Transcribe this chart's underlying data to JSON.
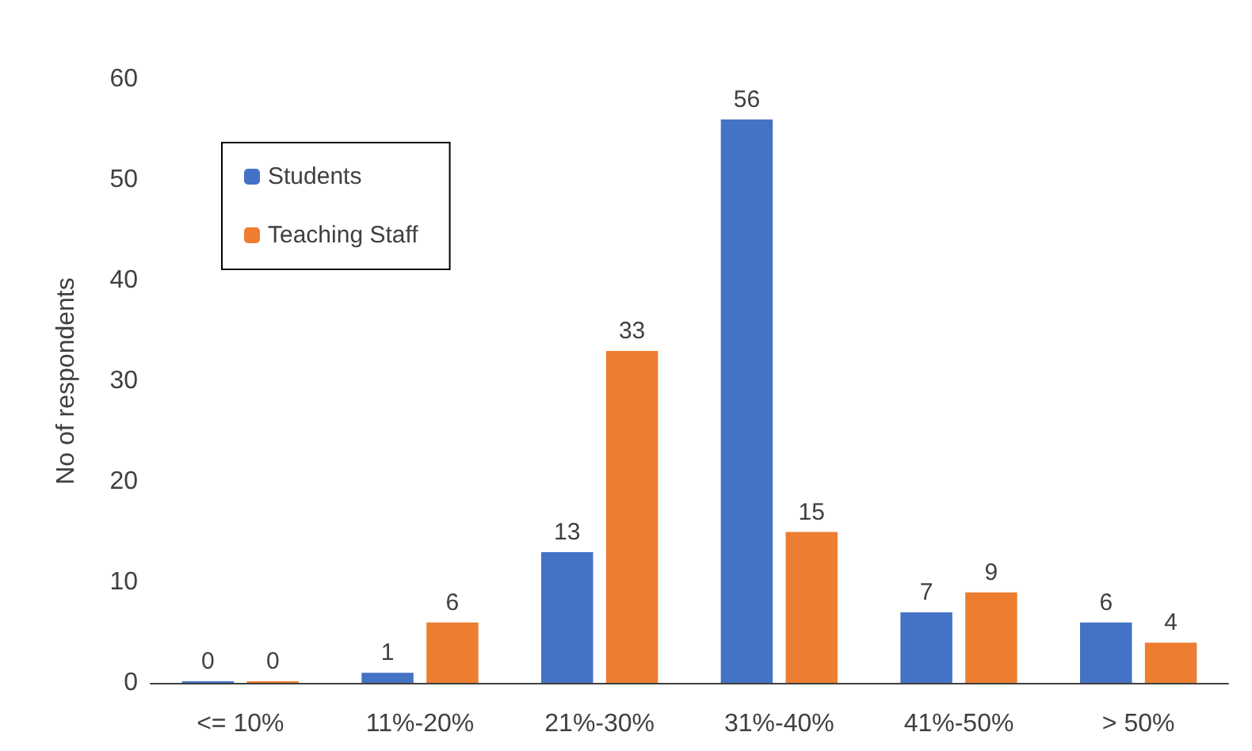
{
  "chart_data": {
    "type": "bar",
    "ylabel": "No of respondents",
    "categories": [
      "<= 10%",
      "11%-20%",
      "21%-30%",
      "31%-40%",
      "41%-50%",
      "> 50%"
    ],
    "series": [
      {
        "name": "Students",
        "color": "#4472c4",
        "values": [
          0,
          1,
          13,
          56,
          7,
          6
        ]
      },
      {
        "name": "Teaching Staff",
        "color": "#ed7d31",
        "values": [
          0,
          6,
          33,
          15,
          9,
          4
        ]
      }
    ],
    "ylim": [
      0,
      60
    ],
    "yticks": [
      0,
      10,
      20,
      30,
      40,
      50,
      60
    ],
    "grid": false,
    "legend": "top left",
    "data_labels": true
  }
}
